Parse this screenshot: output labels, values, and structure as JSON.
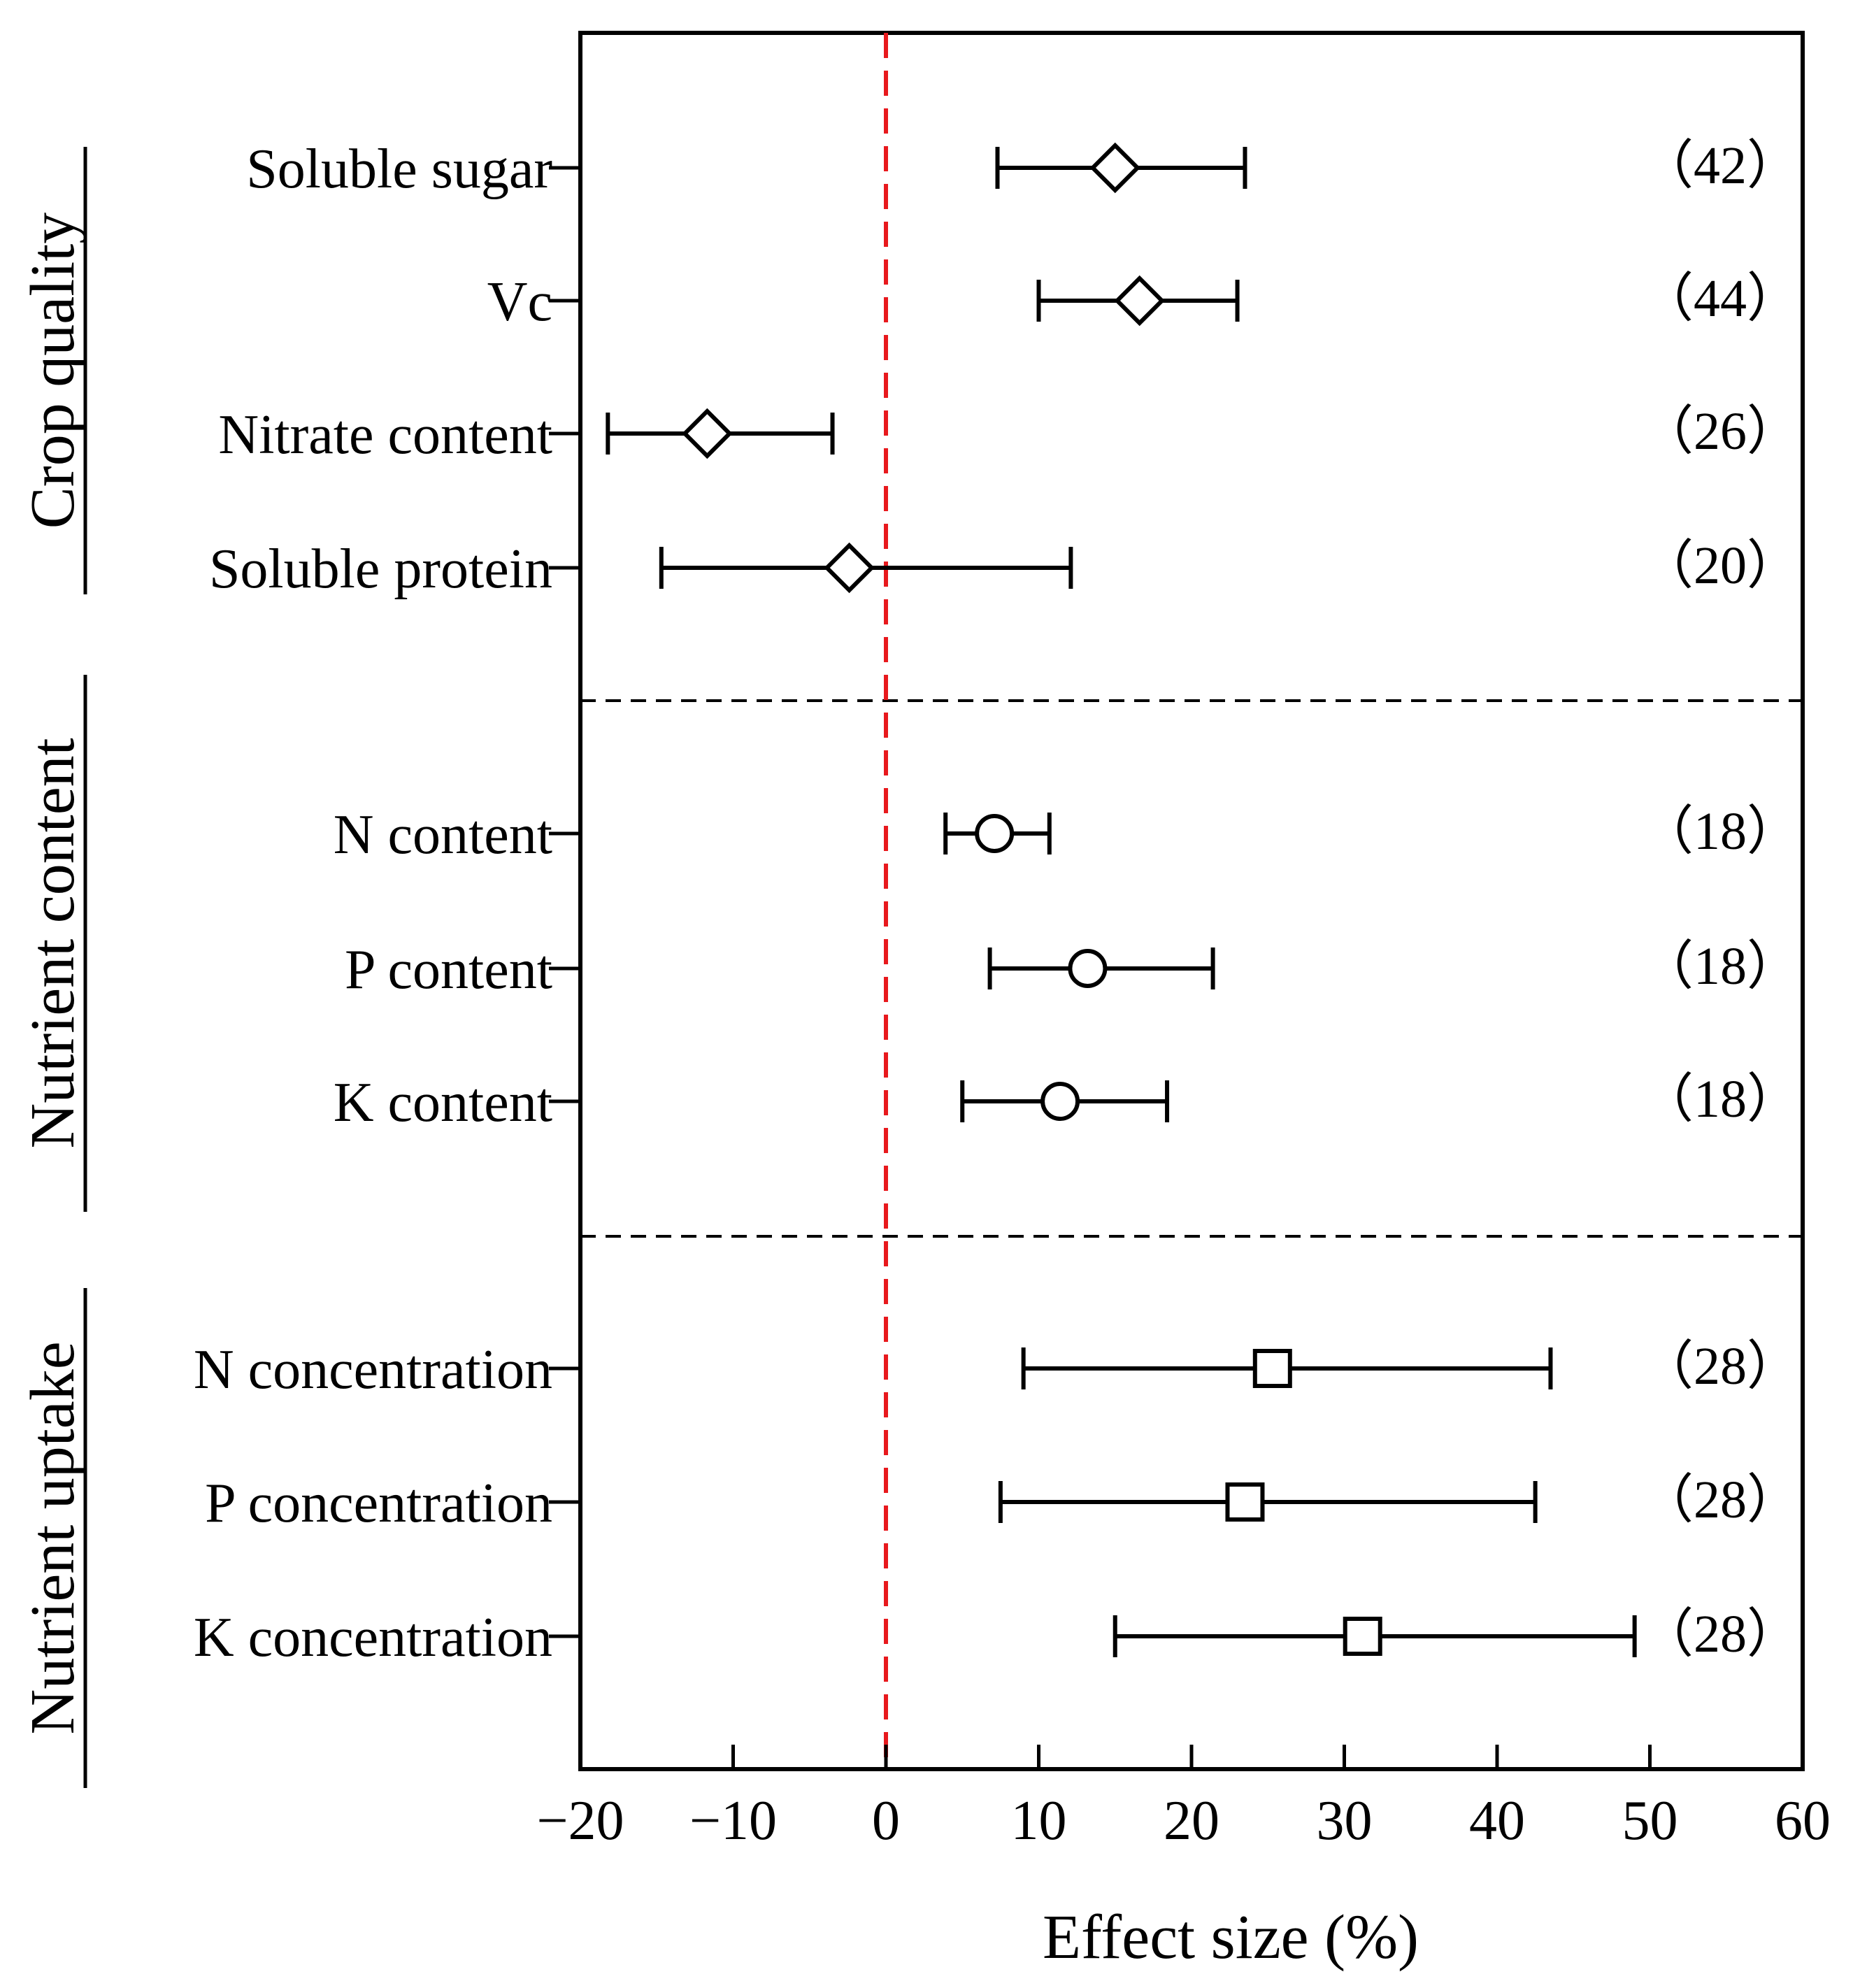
{
  "chart_data": {
    "type": "forest",
    "xlabel": "Effect size (%)",
    "xlim": [
      -20,
      60
    ],
    "xticks": [
      -20,
      -10,
      0,
      10,
      20,
      30,
      40,
      50,
      60
    ],
    "xtick_labels": [
      "−20",
      "−10",
      "0",
      "10",
      "20",
      "30",
      "40",
      "50",
      "60"
    ],
    "reference_line": 0,
    "reference_color": "#e8191d",
    "groups": [
      {
        "name": "Crop quality",
        "marker": "diamond",
        "items": [
          {
            "label": "Soluble sugar",
            "mean": 15.0,
            "low": 7.3,
            "high": 23.5,
            "n": "（42）"
          },
          {
            "label": "Vc",
            "mean": 16.6,
            "low": 10.0,
            "high": 23.0,
            "n": "（44）"
          },
          {
            "label": "Nitrate content",
            "mean": -11.7,
            "low": -18.2,
            "high": -3.5,
            "n": "（26）"
          },
          {
            "label": "Soluble protein",
            "mean": -2.4,
            "low": -14.7,
            "high": 12.1,
            "n": "（20）"
          }
        ]
      },
      {
        "name": "Nutrient content",
        "marker": "circle",
        "items": [
          {
            "label": "N content",
            "mean": 7.1,
            "low": 3.9,
            "high": 10.7,
            "n": "（18）"
          },
          {
            "label": "P content",
            "mean": 13.2,
            "low": 6.8,
            "high": 21.4,
            "n": "（18）"
          },
          {
            "label": "K content",
            "mean": 11.4,
            "low": 5.0,
            "high": 18.4,
            "n": "（18）"
          }
        ]
      },
      {
        "name": "Nutrient uptake",
        "marker": "square",
        "items": [
          {
            "label": "N concentration",
            "mean": 25.3,
            "low": 9.0,
            "high": 43.5,
            "n": "（28）"
          },
          {
            "label": "P concentration",
            "mean": 23.5,
            "low": 7.5,
            "high": 42.5,
            "n": "（28）"
          },
          {
            "label": "K concentration",
            "mean": 31.2,
            "low": 15.0,
            "high": 49.0,
            "n": "（28）"
          }
        ]
      }
    ]
  }
}
